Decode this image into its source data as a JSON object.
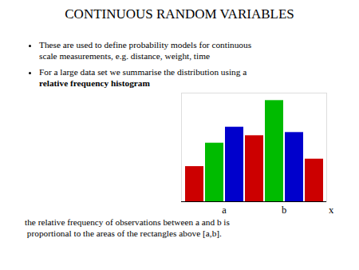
{
  "chart_data": {
    "type": "bar",
    "title": "CONTINUOUS RANDOM VARIABLES",
    "annotations": [
      "These are used to define probability models for continuous",
      "scale measurements,  e.g. distance, weight, time",
      "For a large data set we summarise the distribution using a",
      "relative frequency histogram",
      "a",
      "b",
      "the relative frequency of observations between a and b is",
      " proportional to the areas of the rectangles above [a,b]."
    ],
    "x_label": "x",
    "categories": [
      null,
      null,
      null,
      null,
      null,
      null,
      null
    ],
    "values": [
      0.33,
      0.55,
      0.7,
      0.62,
      0.95,
      0.65,
      0.4
    ],
    "colors": [
      "#cc0000",
      "#00bb00",
      "#0000cc",
      "#cc0000",
      "#00bb00",
      "#0000cc",
      "#cc0000"
    ],
    "ylim": [
      0,
      1.02
    ],
    "tick_labels": false
  }
}
